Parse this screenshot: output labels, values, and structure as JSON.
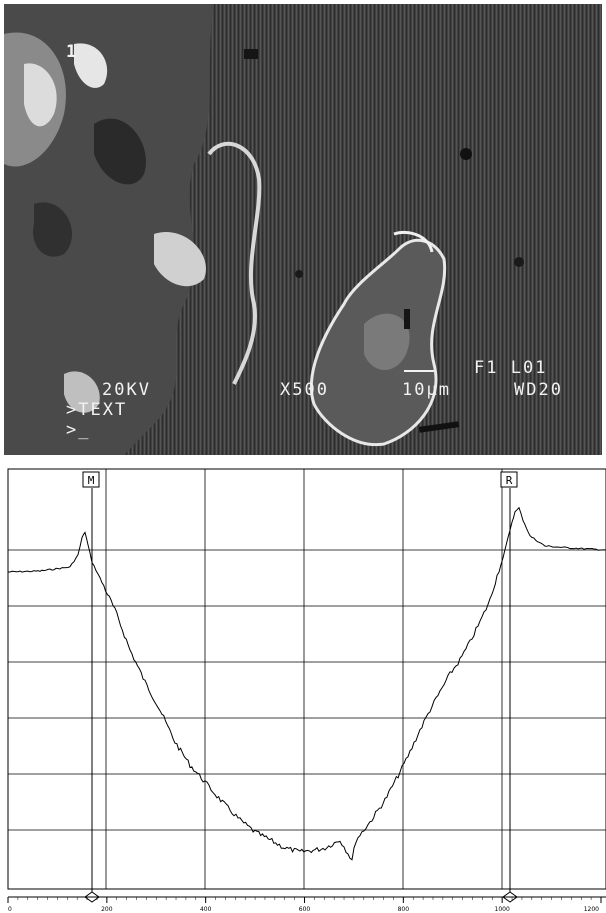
{
  "micrograph": {
    "region_label": "1",
    "accel_voltage": "20KV",
    "magnification": "X500",
    "scale_bar": "10μm",
    "frame_id": "F1 L01",
    "working_distance": "WD20",
    "text_line": ">TEXT",
    "prompt": ">_"
  },
  "profile": {
    "marker_left": "M",
    "marker_right": "R",
    "x_ticks": [
      "0",
      "200",
      "400",
      "600",
      "800",
      "1000",
      "1200"
    ],
    "line_color": "#000000",
    "grid_color": "#000000"
  }
}
